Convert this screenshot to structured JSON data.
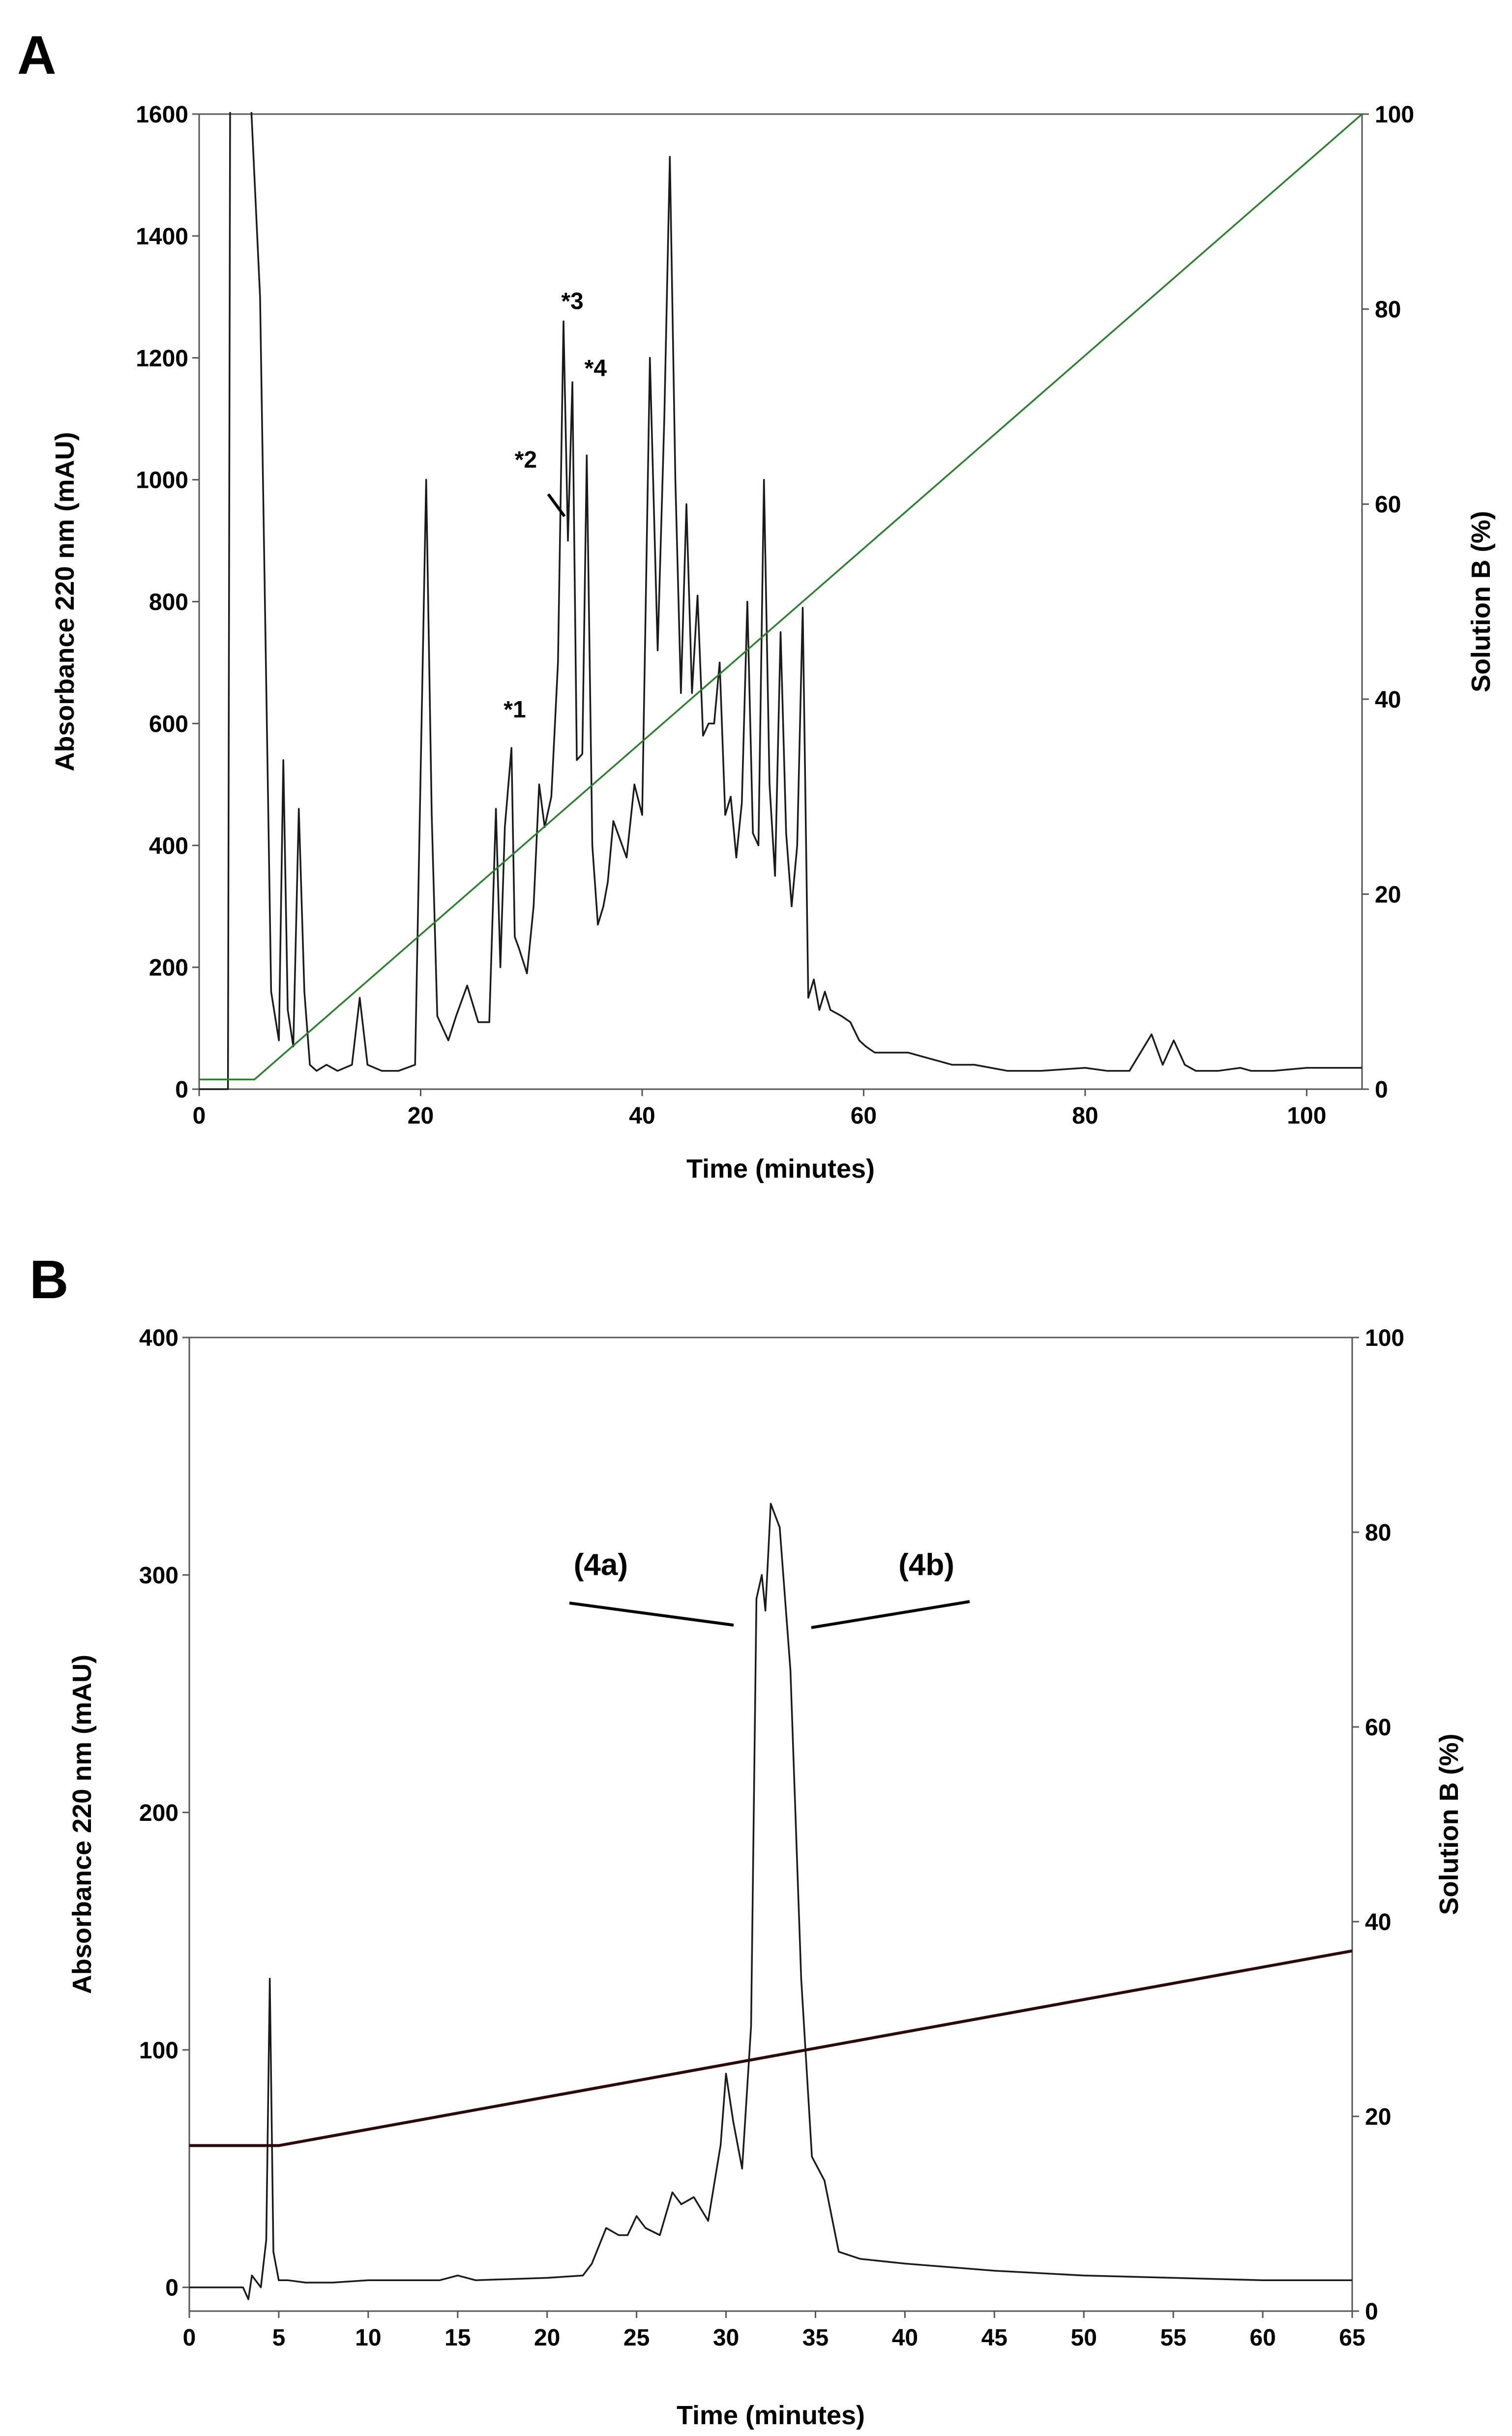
{
  "chart_data": [
    {
      "id": "A",
      "panel_label": "A",
      "type": "line",
      "xlabel": "Time (minutes)",
      "ylabel": "Absorbance 220 nm (mAU)",
      "y2label": "Solution B (%)",
      "xlim": [
        0,
        105
      ],
      "ylim": [
        0,
        1600
      ],
      "y2lim": [
        0,
        100
      ],
      "xticks": [
        0,
        20,
        40,
        60,
        80,
        100
      ],
      "yticks": [
        0,
        200,
        400,
        600,
        800,
        1000,
        1200,
        1400,
        1600
      ],
      "y2ticks": [
        0,
        20,
        40,
        60,
        80,
        100
      ],
      "grid": false,
      "colors": {
        "trace": "#1a1a1a",
        "gradient": "#2e7d32"
      },
      "series": [
        {
          "name": "Absorbance 220 nm",
          "axis": "left",
          "style": "trace",
          "x": [
            0,
            2.6,
            2.8,
            3.0,
            3.5,
            4.0,
            4.3,
            4.6,
            5.5,
            6.5,
            7.2,
            7.6,
            8.0,
            8.5,
            9.0,
            9.5,
            10.0,
            10.6,
            11.5,
            12.5,
            13.8,
            14.5,
            15.2,
            16.5,
            18,
            19.5,
            20.5,
            21.0,
            21.5,
            22.5,
            23.2,
            24.2,
            25.2,
            26.2,
            26.8,
            27.2,
            27.6,
            28.2,
            28.5,
            28.9,
            29.6,
            30.2,
            30.7,
            31.2,
            31.8,
            32.4,
            32.9,
            33.3,
            33.7,
            34.1,
            34.6,
            35.0,
            35.5,
            36.0,
            36.5,
            36.9,
            37.4,
            38.0,
            38.6,
            39.3,
            40.0,
            40.7,
            41.4,
            42.0,
            42.5,
            43.0,
            43.5,
            44.0,
            44.5,
            45.0,
            45.5,
            46.0,
            46.5,
            47.0,
            47.5,
            48.0,
            48.5,
            49.0,
            49.5,
            50.0,
            50.5,
            51.0,
            51.5,
            52.0,
            52.5,
            53.0,
            53.5,
            54.0,
            54.5,
            55.0,
            55.5,
            56.0,
            56.5,
            57.0,
            58.0,
            58.8,
            59.6,
            60.2,
            61.0,
            62.5,
            64,
            66,
            68,
            70,
            73,
            74,
            76,
            80,
            82,
            84,
            86,
            87,
            88,
            89,
            90,
            92,
            94,
            95,
            97,
            100,
            105
          ],
          "y": [
            0,
            0,
            1650,
            1650,
            1650,
            1650,
            1650,
            1650,
            1300,
            160,
            80,
            540,
            130,
            70,
            460,
            160,
            40,
            30,
            40,
            30,
            40,
            150,
            40,
            30,
            30,
            40,
            1000,
            450,
            120,
            80,
            120,
            170,
            110,
            110,
            460,
            200,
            430,
            560,
            250,
            230,
            190,
            300,
            500,
            430,
            480,
            700,
            1260,
            900,
            1160,
            540,
            550,
            1040,
            400,
            270,
            300,
            340,
            440,
            410,
            380,
            500,
            450,
            1200,
            720,
            1100,
            1530,
            1000,
            650,
            960,
            650,
            810,
            580,
            600,
            600,
            700,
            450,
            480,
            380,
            470,
            800,
            420,
            400,
            1000,
            500,
            350,
            750,
            420,
            300,
            400,
            790,
            150,
            180,
            130,
            160,
            130,
            120,
            110,
            80,
            70,
            60,
            60,
            60,
            50,
            40,
            40,
            30,
            30,
            30,
            35,
            30,
            30,
            90,
            40,
            80,
            40,
            30,
            30,
            35,
            30,
            30,
            35,
            35
          ]
        },
        {
          "name": "Solution B (%)",
          "axis": "right",
          "style": "gradient",
          "x": [
            0,
            5,
            105
          ],
          "y": [
            1,
            1,
            100
          ]
        }
      ],
      "annotations": [
        {
          "text": "*1",
          "x": 28.5,
          "y": 610
        },
        {
          "text": "*2",
          "x": 29.5,
          "y": 1020
        },
        {
          "text": "*3",
          "x": 33.7,
          "y": 1280
        },
        {
          "text": "*4",
          "x": 35.8,
          "y": 1170
        }
      ]
    },
    {
      "id": "B",
      "panel_label": "B",
      "type": "line",
      "xlabel": "Time (minutes)",
      "ylabel": "Absorbance 220 nm (mAU)",
      "y2label": "Solution B (%)",
      "xlim": [
        0,
        65
      ],
      "ylim": [
        -10,
        400
      ],
      "y2lim": [
        0,
        100
      ],
      "xticks": [
        0,
        5,
        10,
        15,
        20,
        25,
        30,
        35,
        40,
        45,
        50,
        55,
        60,
        65
      ],
      "yticks": [
        0,
        100,
        200,
        300,
        400
      ],
      "y2ticks": [
        0,
        20,
        40,
        60,
        80,
        100
      ],
      "grid": false,
      "colors": {
        "trace": "#1a1a1a",
        "gradient": "#2a0a0a"
      },
      "series": [
        {
          "name": "Absorbance 220 nm",
          "axis": "left",
          "style": "trace",
          "x": [
            0,
            3,
            3.3,
            3.5,
            4.0,
            4.3,
            4.5,
            4.7,
            5.0,
            5.5,
            6.5,
            8,
            10,
            14,
            15,
            16,
            20,
            22,
            22.5,
            23.3,
            24,
            24.5,
            25.0,
            25.5,
            26.3,
            27.0,
            27.5,
            28.2,
            29.0,
            29.7,
            30.0,
            30.4,
            30.9,
            31.4,
            31.7,
            32.0,
            32.2,
            32.5,
            33.0,
            33.6,
            34.2,
            34.8,
            35.5,
            36.3,
            37.5,
            40,
            45,
            50,
            55,
            60,
            65
          ],
          "y": [
            0,
            0,
            -5,
            5,
            0,
            20,
            130,
            15,
            3,
            3,
            2,
            2,
            3,
            3,
            5,
            3,
            4,
            5,
            10,
            25,
            22,
            22,
            30,
            25,
            22,
            40,
            35,
            38,
            28,
            60,
            90,
            70,
            50,
            110,
            290,
            300,
            285,
            330,
            320,
            260,
            130,
            55,
            45,
            15,
            12,
            10,
            7,
            5,
            4,
            3,
            3
          ]
        },
        {
          "name": "Solution B (%)",
          "axis": "right",
          "style": "gradient",
          "x": [
            0,
            5,
            65
          ],
          "y": [
            17,
            17,
            37
          ]
        }
      ],
      "annotations": [
        {
          "text": "(4a)",
          "x": 23.0,
          "y": 300
        },
        {
          "text": "(4b)",
          "x": 41.2,
          "y": 300
        }
      ]
    }
  ]
}
